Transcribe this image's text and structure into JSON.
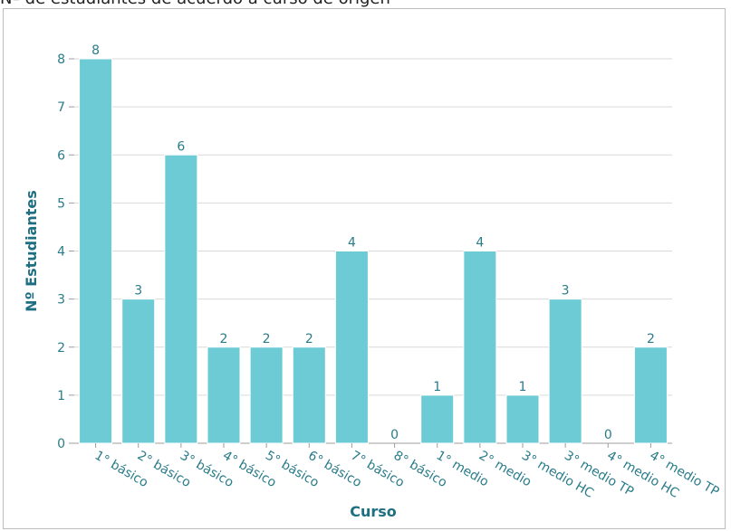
{
  "header": {
    "title_fragment": "Nº de estudiantes de acuerdo a curso de origen"
  },
  "colors": {
    "bar": "#6ccbd5",
    "bar_edge": "#ffffff",
    "grid": "#d9d9d9",
    "axis": "#9e9e9e",
    "text": "#2a7c8a",
    "axis_title": "#1f6f82"
  },
  "chart_data": {
    "type": "bar",
    "title": "",
    "xlabel": "Curso",
    "ylabel": "Nº Estudiantes",
    "categories": [
      "1° básico",
      "2° básico",
      "3° básico",
      "4° básico",
      "5° básico",
      "6° básico",
      "7° básico",
      "8° básico",
      "1° medio",
      "2° medio",
      "3° medio HC",
      "3° medio TP",
      "4° medio HC",
      "4° medio TP"
    ],
    "values": [
      8,
      3,
      6,
      2,
      2,
      2,
      4,
      0,
      1,
      4,
      1,
      3,
      0,
      2
    ],
    "ylim": [
      0,
      8
    ],
    "yticks": [
      0,
      1,
      2,
      3,
      4,
      5,
      6,
      7,
      8
    ],
    "grid": true,
    "data_labels": true
  }
}
